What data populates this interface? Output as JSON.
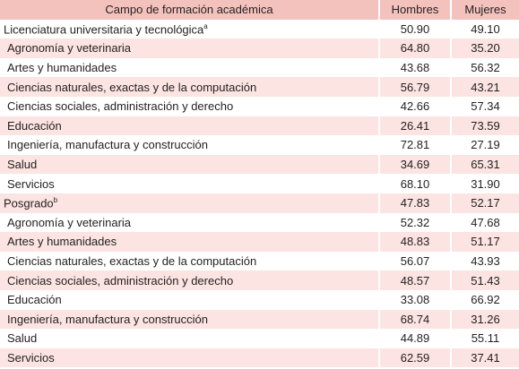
{
  "table": {
    "header": [
      "Campo de formación académica",
      "Hombres",
      "Mujeres"
    ],
    "rows": [
      {
        "label": "Licenciatura universitaria y tecnológica",
        "sup": "a",
        "cells": [
          "50.90",
          "49.10"
        ]
      },
      {
        "label": "Agronomía y veterinaria",
        "cells": [
          "64.80",
          "35.20"
        ]
      },
      {
        "label": "Artes y humanidades",
        "cells": [
          "43.68",
          "56.32"
        ]
      },
      {
        "label": "Ciencias naturales, exactas y de la computación",
        "cells": [
          "56.79",
          "43.21"
        ]
      },
      {
        "label": "Ciencias sociales, administración y derecho",
        "cells": [
          "42.66",
          "57.34"
        ]
      },
      {
        "label": "Educación",
        "cells": [
          "26.41",
          "73.59"
        ]
      },
      {
        "label": "Ingeniería, manufactura y construcción",
        "cells": [
          "72.81",
          "27.19"
        ]
      },
      {
        "label": "Salud",
        "cells": [
          "34.69",
          "65.31"
        ]
      },
      {
        "label": "Servicios",
        "cells": [
          "68.10",
          "31.90"
        ]
      },
      {
        "label": "Posgrado",
        "sup": "b",
        "cells": [
          "47.83",
          "52.17"
        ]
      },
      {
        "label": "Agronomía y veterinaria",
        "cells": [
          "52.32",
          "47.68"
        ]
      },
      {
        "label": "Artes y humanidades",
        "cells": [
          "48.83",
          "51.17"
        ]
      },
      {
        "label": "Ciencias naturales, exactas y de la computación",
        "cells": [
          "56.07",
          "43.93"
        ]
      },
      {
        "label": "Ciencias sociales, administración y derecho",
        "cells": [
          "48.57",
          "51.43"
        ]
      },
      {
        "label": "Educación",
        "cells": [
          "33.08",
          "66.92"
        ]
      },
      {
        "label": "Ingeniería, manufactura y construcción",
        "cells": [
          "68.74",
          "31.26"
        ]
      },
      {
        "label": "Salud",
        "cells": [
          "44.89",
          "55.11"
        ]
      },
      {
        "label": "Servicios",
        "cells": [
          "62.59",
          "37.41"
        ]
      }
    ]
  }
}
